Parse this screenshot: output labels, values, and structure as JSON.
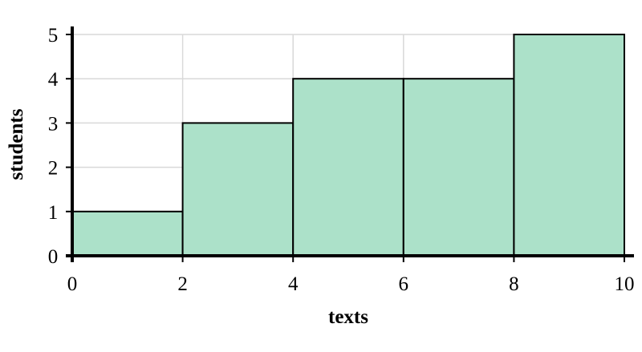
{
  "chart_data": {
    "type": "bar",
    "subtype": "histogram",
    "title": "",
    "xlabel": "texts",
    "ylabel": "students",
    "bins": [
      {
        "x0": 0,
        "x1": 2,
        "value": 1
      },
      {
        "x0": 2,
        "x1": 4,
        "value": 3
      },
      {
        "x0": 4,
        "x1": 6,
        "value": 4
      },
      {
        "x0": 6,
        "x1": 8,
        "value": 4
      },
      {
        "x0": 8,
        "x1": 10,
        "value": 5
      }
    ],
    "xlim": [
      0,
      10
    ],
    "ylim": [
      0,
      5
    ],
    "x_ticks": [
      0,
      2,
      4,
      6,
      8,
      10
    ],
    "y_ticks": [
      0,
      1,
      2,
      3,
      4,
      5
    ],
    "grid": true,
    "bar_color": "#ace1c9",
    "bar_edge_color": "#000000",
    "grid_color": "#d9d9d9"
  }
}
